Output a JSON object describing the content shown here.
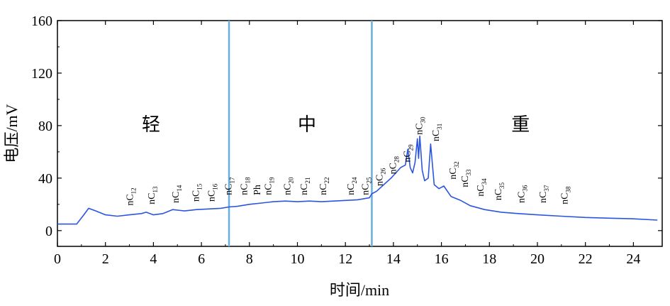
{
  "chart_data": {
    "type": "line",
    "xlabel": "时间/min",
    "ylabel": "电压/mV",
    "xlim": [
      0,
      25.2
    ],
    "ylim": [
      -12,
      160
    ],
    "xticks": [
      "0",
      "2",
      "4",
      "6",
      "8",
      "10",
      "12",
      "14",
      "16",
      "18",
      "20",
      "22",
      "24"
    ],
    "yticks": [
      "0",
      "40",
      "80",
      "120",
      "160"
    ],
    "grid": false,
    "dividers": [
      7.15,
      13.1
    ],
    "regions": [
      {
        "label": "轻",
        "x": 3.9,
        "y": 81
      },
      {
        "label": "中",
        "x": 10.4,
        "y": 81
      },
      {
        "label": "重",
        "x": 19.3,
        "y": 81
      }
    ],
    "series": [
      {
        "color": "#2b55e0",
        "x": [
          0,
          0.8,
          1.1,
          1.3,
          1.6,
          2.0,
          2.5,
          3.0,
          3.5,
          3.7,
          4.0,
          4.4,
          4.8,
          5.3,
          5.8,
          6.3,
          6.8,
          7.15,
          7.5,
          8.0,
          8.5,
          9.0,
          9.5,
          10.0,
          10.5,
          11.0,
          11.5,
          12.0,
          12.5,
          13.0,
          13.1,
          13.3,
          13.6,
          13.9,
          14.1,
          14.3,
          14.5,
          14.6,
          14.7,
          14.8,
          14.9,
          15.0,
          15.05,
          15.1,
          15.2,
          15.3,
          15.45,
          15.55,
          15.7,
          15.9,
          16.1,
          16.4,
          16.8,
          17.2,
          17.8,
          18.5,
          19.2,
          20.0,
          21.0,
          22.0,
          23.0,
          24.0,
          25.0
        ],
        "y": [
          5,
          5,
          12,
          17,
          15,
          12,
          11,
          12,
          13,
          14,
          12,
          13,
          16,
          15,
          16,
          16.5,
          17,
          18,
          18.5,
          20,
          21,
          22,
          22.5,
          22,
          22.5,
          22,
          22.5,
          23,
          23.5,
          25,
          28,
          30,
          35,
          40,
          44,
          48,
          50,
          62,
          48,
          44,
          52,
          70,
          55,
          72,
          46,
          38,
          40,
          66,
          35,
          32,
          34,
          26,
          23,
          19,
          16,
          14,
          13,
          12,
          11,
          10,
          9.5,
          9,
          8
        ]
      }
    ],
    "annotations": [
      {
        "text": "nC",
        "sub": "12",
        "x": 3.15,
        "y": 19
      },
      {
        "text": "nC",
        "sub": "13",
        "x": 4.05,
        "y": 20
      },
      {
        "text": "nC",
        "sub": "14",
        "x": 5.05,
        "y": 21
      },
      {
        "text": "nC",
        "sub": "15",
        "x": 5.9,
        "y": 22
      },
      {
        "text": "nC",
        "sub": "16",
        "x": 6.55,
        "y": 22
      },
      {
        "text": "nC",
        "sub": "17",
        "x": 7.25,
        "y": 27
      },
      {
        "text": "nC",
        "sub": "18",
        "x": 7.9,
        "y": 27
      },
      {
        "text": "Ph",
        "sub": "",
        "x": 8.45,
        "y": 27
      },
      {
        "text": "nC",
        "sub": "19",
        "x": 8.9,
        "y": 27
      },
      {
        "text": "nC",
        "sub": "20",
        "x": 9.7,
        "y": 27
      },
      {
        "text": "nC",
        "sub": "21",
        "x": 10.4,
        "y": 27
      },
      {
        "text": "nC",
        "sub": "22",
        "x": 11.2,
        "y": 27
      },
      {
        "text": "nC",
        "sub": "24",
        "x": 12.35,
        "y": 27
      },
      {
        "text": "nC",
        "sub": "25",
        "x": 12.95,
        "y": 27
      },
      {
        "text": "nC",
        "sub": "26",
        "x": 13.55,
        "y": 34
      },
      {
        "text": "nC",
        "sub": "28",
        "x": 14.1,
        "y": 43
      },
      {
        "text": "nC",
        "sub": "29",
        "x": 14.7,
        "y": 52
      },
      {
        "text": "nC",
        "sub": "30",
        "x": 15.2,
        "y": 73
      },
      {
        "text": "nC",
        "sub": "31",
        "x": 15.9,
        "y": 68
      },
      {
        "text": "nC",
        "sub": "32",
        "x": 16.6,
        "y": 39
      },
      {
        "text": "nC",
        "sub": "33",
        "x": 17.1,
        "y": 33
      },
      {
        "text": "nC",
        "sub": "34",
        "x": 17.75,
        "y": 26
      },
      {
        "text": "nC",
        "sub": "35",
        "x": 18.5,
        "y": 23
      },
      {
        "text": "nC",
        "sub": "36",
        "x": 19.45,
        "y": 21
      },
      {
        "text": "nC",
        "sub": "37",
        "x": 20.35,
        "y": 21
      },
      {
        "text": "nC",
        "sub": "38",
        "x": 21.25,
        "y": 20
      }
    ]
  }
}
